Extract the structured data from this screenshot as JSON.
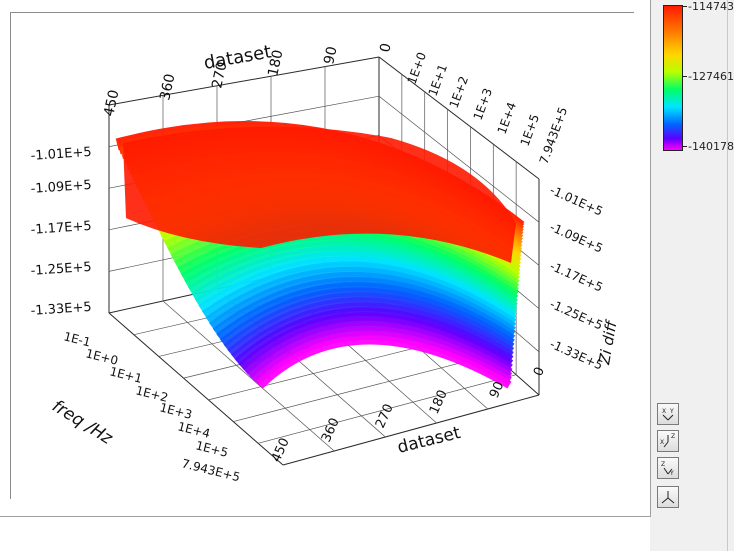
{
  "colorbar": {
    "labels": [
      "-114743",
      "-127461",
      "-140178"
    ],
    "colors": [
      "#ff1a00",
      "#ff7a00",
      "#ffd700",
      "#b7ff00",
      "#00ff66",
      "#00e5ff",
      "#0066ff",
      "#5a00ff",
      "#ff00ff"
    ]
  },
  "toolbar": {
    "icons": [
      "rotate-xy-icon",
      "rotate-xz-icon",
      "rotate-zy-icon",
      "reset-view-icon"
    ]
  },
  "chart_data": {
    "type": "surface3d",
    "axes": {
      "dataset": {
        "label": "dataset",
        "ticks": [
          "450",
          "360",
          "270",
          "180",
          "90",
          "0"
        ],
        "range": [
          0,
          450
        ]
      },
      "freq": {
        "label": "freq /Hz",
        "ticks": [
          "1E-1",
          "1E+0",
          "1E+1",
          "1E+2",
          "1E+3",
          "1E+4",
          "1E+5",
          "7.943E+5"
        ],
        "range": [
          0.1,
          794300
        ],
        "scale": "log"
      },
      "z": {
        "label": "Zi diff",
        "ticks": [
          "-1.01E+5",
          "-1.09E+5",
          "-1.17E+5",
          "-1.25E+5",
          "-1.33E+5"
        ],
        "range": [
          -140178,
          -101000
        ]
      }
    },
    "top_freq_ticks": [
      "1E+0",
      "1E+1",
      "1E+2",
      "1E+3",
      "1E+4",
      "1E+5",
      "7.943E+5"
    ],
    "bottom_dataset_ticks": [
      "0",
      "90",
      "180",
      "270",
      "360",
      "450"
    ],
    "color_range": [
      -140178,
      -114743
    ],
    "grid": true,
    "legend": "colorbar right"
  }
}
